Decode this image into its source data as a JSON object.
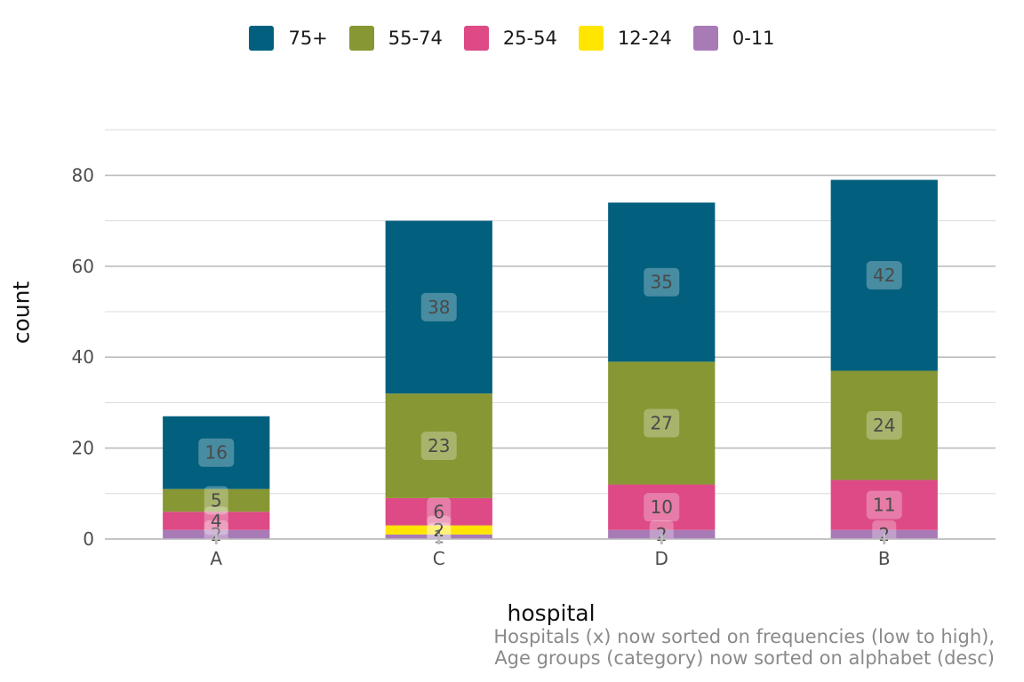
{
  "chart_data": {
    "type": "bar",
    "stacked": true,
    "categories": [
      "A",
      "C",
      "D",
      "B"
    ],
    "series": [
      {
        "name": "0-11",
        "color": "#a87bb7",
        "values": [
          2,
          1,
          2,
          2
        ]
      },
      {
        "name": "12-24",
        "color": "#ffe500",
        "values": [
          0,
          2,
          0,
          0
        ]
      },
      {
        "name": "25-54",
        "color": "#dd4a85",
        "values": [
          4,
          6,
          10,
          11
        ]
      },
      {
        "name": "55-74",
        "color": "#879733",
        "values": [
          5,
          23,
          27,
          24
        ]
      },
      {
        "name": "75+",
        "color": "#02607e",
        "values": [
          16,
          38,
          35,
          42
        ]
      }
    ],
    "xlabel": "hospital",
    "ylabel": "count",
    "ylim": [
      0,
      90
    ],
    "yticks": [
      0,
      20,
      40,
      60,
      80
    ],
    "grid": true,
    "legend_position": "top",
    "legend_order": [
      "75+",
      "55-74",
      "25-54",
      "12-24",
      "0-11"
    ],
    "caption_line1": "Hospitals (x) now sorted on frequencies (low to high),",
    "caption_line2": "Age groups (category) now sorted on alphabet (desc)"
  }
}
